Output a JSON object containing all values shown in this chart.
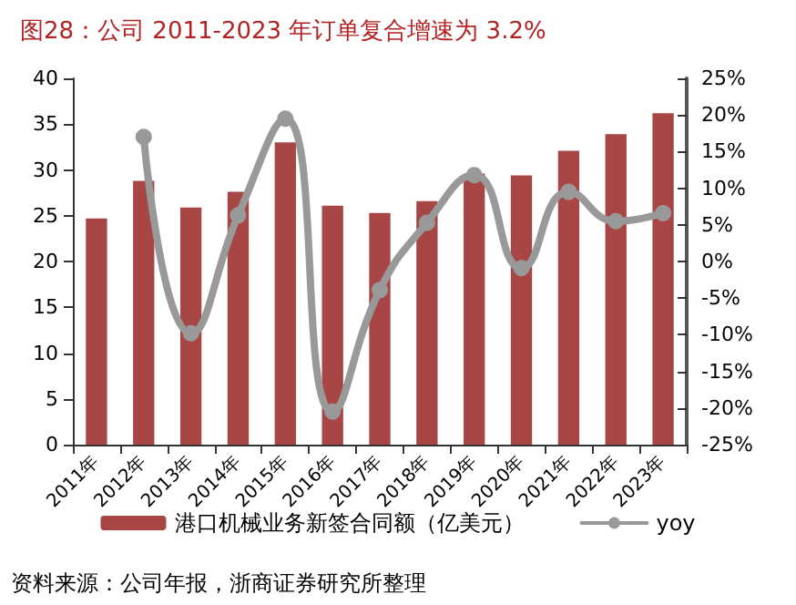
{
  "chart_data": {
    "type": "bar",
    "title": "图28：公司 2011-2023 年订单复合增速为 3.2%",
    "categories": [
      "2011年",
      "2012年",
      "2013年",
      "2014年",
      "2015年",
      "2016年",
      "2017年",
      "2018年",
      "2019年",
      "2020年",
      "2021年",
      "2022年",
      "2023年"
    ],
    "series": [
      {
        "name": "港口机械业务新签合同额（亿美元）",
        "color": "#a84545",
        "values": [
          24.7,
          28.8,
          25.9,
          27.6,
          33.0,
          26.1,
          25.3,
          26.6,
          29.6,
          29.4,
          32.1,
          33.9,
          36.2
        ]
      },
      {
        "name": "yoy",
        "type": "line",
        "axis": "y2",
        "color": "#999999",
        "values": [
          null,
          17.0,
          -9.8,
          6.3,
          19.5,
          -20.5,
          -3.9,
          5.3,
          11.8,
          -0.9,
          9.5,
          5.5,
          6.6
        ]
      }
    ],
    "ylim": [
      0,
      40
    ],
    "yticks": [
      0,
      5,
      10,
      15,
      20,
      25,
      30,
      35,
      40
    ],
    "y2lim": [
      -25,
      25
    ],
    "y2ticks": [
      {
        "value": -25,
        "label": "-25%"
      },
      {
        "value": -20,
        "label": "-20%"
      },
      {
        "value": -15,
        "label": "-15%"
      },
      {
        "value": -10,
        "label": "-10%"
      },
      {
        "value": -5,
        "label": "-5%"
      },
      {
        "value": 0,
        "label": "0%"
      },
      {
        "value": 5,
        "label": "5%"
      },
      {
        "value": 10,
        "label": "10%"
      },
      {
        "value": 15,
        "label": "15%"
      },
      {
        "value": 20,
        "label": "20%"
      },
      {
        "value": 25,
        "label": "25%"
      }
    ],
    "legend": "bottom",
    "marker": "circle",
    "grid": false,
    "annotations": [
      "资料来源：公司年报，浙商证券研究所整理"
    ]
  }
}
